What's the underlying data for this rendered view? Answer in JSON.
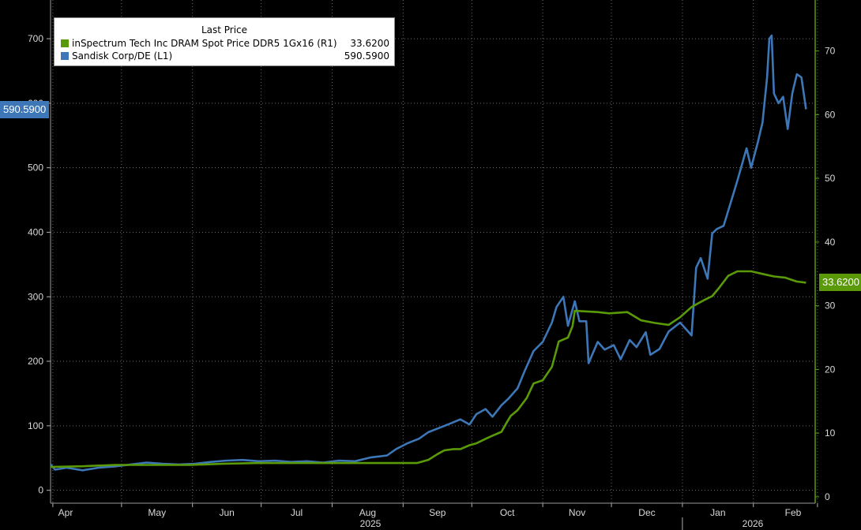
{
  "chart_data": {
    "type": "line",
    "legend": {
      "title": "Last Price",
      "placement": "top-left",
      "entries": [
        {
          "name": "inSpectrum Tech Inc DRAM Spot Price DDR5 1Gx16  (R1)",
          "value": "33.6200",
          "color": "#5a9a08"
        },
        {
          "name": "Sandisk Corp/DE  (L1)",
          "value": "590.5900",
          "color": "#3d77b8"
        }
      ]
    },
    "x_axis": {
      "month_ticks": [
        "Apr",
        "May",
        "Jun",
        "Jul",
        "Aug",
        "Sep",
        "Oct",
        "Nov",
        "Dec",
        "Jan",
        "Feb"
      ],
      "year_labels": [
        "2025",
        "2026"
      ]
    },
    "left_axis": {
      "ticks": [
        0,
        100,
        200,
        300,
        400,
        500,
        600,
        700
      ],
      "range": [
        -20,
        760
      ],
      "last_value_label": "590.5900"
    },
    "right_axis": {
      "ticks": [
        0,
        10,
        20,
        30,
        40,
        50,
        60,
        70
      ],
      "range": [
        -1,
        78
      ],
      "last_value_label": "33.6200"
    },
    "grid": true,
    "series": [
      {
        "name": "Sandisk Corp/DE  (L1)",
        "axis": "left",
        "color": "#3d77b8",
        "points": [
          [
            "2025-03-31",
            40
          ],
          [
            "2025-04-02",
            32
          ],
          [
            "2025-04-07",
            35
          ],
          [
            "2025-04-14",
            31
          ],
          [
            "2025-04-21",
            35
          ],
          [
            "2025-04-28",
            37
          ],
          [
            "2025-05-05",
            40
          ],
          [
            "2025-05-12",
            43
          ],
          [
            "2025-05-19",
            41
          ],
          [
            "2025-05-26",
            40
          ],
          [
            "2025-06-02",
            41
          ],
          [
            "2025-06-09",
            44
          ],
          [
            "2025-06-16",
            46
          ],
          [
            "2025-06-23",
            47
          ],
          [
            "2025-06-30",
            45
          ],
          [
            "2025-07-07",
            46
          ],
          [
            "2025-07-14",
            44
          ],
          [
            "2025-07-21",
            45
          ],
          [
            "2025-07-28",
            43
          ],
          [
            "2025-08-04",
            46
          ],
          [
            "2025-08-11",
            45
          ],
          [
            "2025-08-18",
            51
          ],
          [
            "2025-08-25",
            54
          ],
          [
            "2025-08-29",
            64
          ],
          [
            "2025-09-03",
            73
          ],
          [
            "2025-09-08",
            80
          ],
          [
            "2025-09-12",
            90
          ],
          [
            "2025-09-17",
            97
          ],
          [
            "2025-09-22",
            104
          ],
          [
            "2025-09-26",
            110
          ],
          [
            "2025-09-30",
            102
          ],
          [
            "2025-10-03",
            118
          ],
          [
            "2025-10-07",
            126
          ],
          [
            "2025-10-10",
            114
          ],
          [
            "2025-10-14",
            132
          ],
          [
            "2025-10-17",
            142
          ],
          [
            "2025-10-21",
            158
          ],
          [
            "2025-10-24",
            184
          ],
          [
            "2025-10-28",
            216
          ],
          [
            "2025-11-01",
            230
          ],
          [
            "2025-11-05",
            260
          ],
          [
            "2025-11-07",
            284
          ],
          [
            "2025-11-10",
            300
          ],
          [
            "2025-11-12",
            255
          ],
          [
            "2025-11-15",
            293
          ],
          [
            "2025-11-17",
            262
          ],
          [
            "2025-11-20",
            262
          ],
          [
            "2025-11-21",
            197
          ],
          [
            "2025-11-25",
            230
          ],
          [
            "2025-11-28",
            218
          ],
          [
            "2025-12-02",
            225
          ],
          [
            "2025-12-05",
            203
          ],
          [
            "2025-12-09",
            233
          ],
          [
            "2025-12-12",
            222
          ],
          [
            "2025-12-16",
            245
          ],
          [
            "2025-12-18",
            210
          ],
          [
            "2025-12-22",
            219
          ],
          [
            "2025-12-26",
            246
          ],
          [
            "2025-12-31",
            260
          ],
          [
            "2026-01-05",
            240
          ],
          [
            "2026-01-07",
            345
          ],
          [
            "2026-01-09",
            360
          ],
          [
            "2026-01-12",
            328
          ],
          [
            "2026-01-14",
            398
          ],
          [
            "2026-01-16",
            405
          ],
          [
            "2026-01-19",
            410
          ],
          [
            "2026-01-22",
            445
          ],
          [
            "2026-01-25",
            480
          ],
          [
            "2026-01-27",
            505
          ],
          [
            "2026-01-29",
            530
          ],
          [
            "2026-01-31",
            500
          ],
          [
            "2026-02-03",
            540
          ],
          [
            "2026-02-05",
            570
          ],
          [
            "2026-02-07",
            640
          ],
          [
            "2026-02-08",
            700
          ],
          [
            "2026-02-09",
            705
          ],
          [
            "2026-02-10",
            615
          ],
          [
            "2026-02-12",
            600
          ],
          [
            "2026-02-14",
            610
          ],
          [
            "2026-02-16",
            560
          ],
          [
            "2026-02-18",
            615
          ],
          [
            "2026-02-20",
            645
          ],
          [
            "2026-02-22",
            640
          ],
          [
            "2026-02-24",
            590.59
          ]
        ]
      },
      {
        "name": "inSpectrum Tech Inc DRAM Spot Price DDR5 1Gx16  (R1)",
        "axis": "right",
        "color": "#5a9a08",
        "points": [
          [
            "2025-03-31",
            4.7
          ],
          [
            "2025-04-14",
            4.8
          ],
          [
            "2025-04-28",
            5.0
          ],
          [
            "2025-05-31",
            5.0
          ],
          [
            "2025-06-15",
            5.2
          ],
          [
            "2025-06-30",
            5.3
          ],
          [
            "2025-07-31",
            5.3
          ],
          [
            "2025-08-31",
            5.3
          ],
          [
            "2025-09-07",
            5.3
          ],
          [
            "2025-09-12",
            5.8
          ],
          [
            "2025-09-16",
            6.7
          ],
          [
            "2025-09-19",
            7.3
          ],
          [
            "2025-09-23",
            7.5
          ],
          [
            "2025-09-26",
            7.5
          ],
          [
            "2025-09-30",
            8.1
          ],
          [
            "2025-10-03",
            8.4
          ],
          [
            "2025-10-07",
            9.1
          ],
          [
            "2025-10-10",
            9.6
          ],
          [
            "2025-10-14",
            10.2
          ],
          [
            "2025-10-16",
            11.5
          ],
          [
            "2025-10-18",
            12.7
          ],
          [
            "2025-10-21",
            13.6
          ],
          [
            "2025-10-25",
            15.5
          ],
          [
            "2025-10-28",
            17.8
          ],
          [
            "2025-11-01",
            18.3
          ],
          [
            "2025-11-05",
            20.4
          ],
          [
            "2025-11-08",
            24.4
          ],
          [
            "2025-11-12",
            25.0
          ],
          [
            "2025-11-14",
            26.8
          ],
          [
            "2025-11-15",
            29.2
          ],
          [
            "2025-11-25",
            29.0
          ],
          [
            "2025-11-30",
            28.8
          ],
          [
            "2025-12-08",
            29.0
          ],
          [
            "2025-12-14",
            27.7
          ],
          [
            "2025-12-20",
            27.3
          ],
          [
            "2025-12-26",
            27.0
          ],
          [
            "2025-12-31",
            28.2
          ],
          [
            "2026-01-05",
            29.8
          ],
          [
            "2026-01-10",
            30.8
          ],
          [
            "2026-01-14",
            31.5
          ],
          [
            "2026-01-17",
            32.8
          ],
          [
            "2026-01-21",
            34.7
          ],
          [
            "2026-01-25",
            35.4
          ],
          [
            "2026-01-31",
            35.4
          ],
          [
            "2026-02-05",
            35.0
          ],
          [
            "2026-02-10",
            34.6
          ],
          [
            "2026-02-15",
            34.4
          ],
          [
            "2026-02-20",
            33.8
          ],
          [
            "2026-02-24",
            33.62
          ]
        ]
      }
    ]
  }
}
